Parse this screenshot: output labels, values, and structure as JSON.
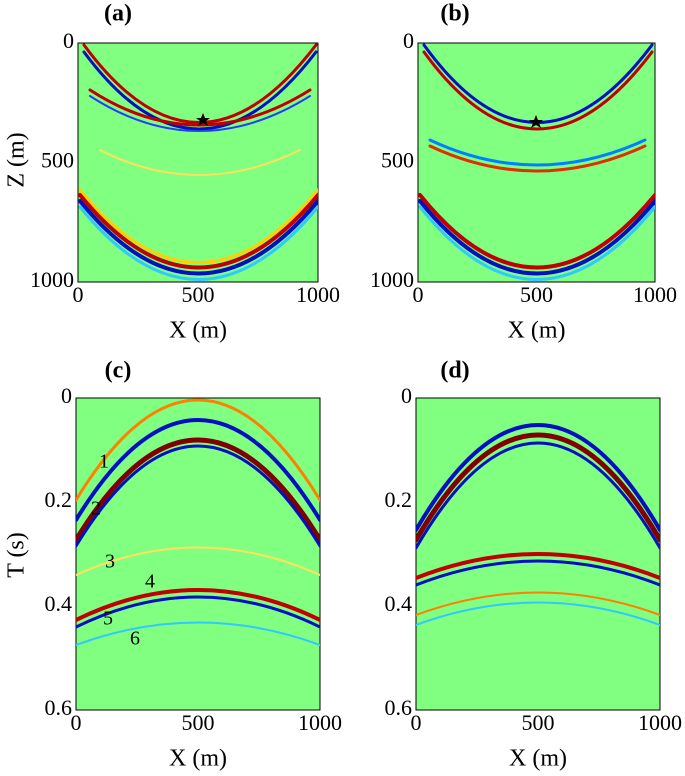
{
  "panels": [
    {
      "label": "(a)",
      "x_label": "X (m)",
      "y_label": "Z (m)",
      "x_ticks": [
        0,
        500,
        1000
      ],
      "y_ticks": [
        0,
        500,
        1000
      ]
    },
    {
      "label": "(b)",
      "x_label": "X (m)",
      "x_ticks": [
        0,
        500,
        1000
      ],
      "y_ticks": [
        0,
        500,
        1000
      ]
    },
    {
      "label": "(c)",
      "x_label": "X (m)",
      "y_label": "T (s)",
      "x_ticks": [
        0,
        500,
        1000
      ],
      "y_ticks": [
        0,
        0.2,
        0.4,
        0.6
      ],
      "annotations": [
        "1",
        "2",
        "3",
        "4",
        "5",
        "6"
      ]
    },
    {
      "label": "(d)",
      "x_label": "X (m)",
      "x_ticks": [
        0,
        500,
        1000
      ],
      "y_ticks": [
        0,
        0.2,
        0.4,
        0.6
      ]
    }
  ]
}
